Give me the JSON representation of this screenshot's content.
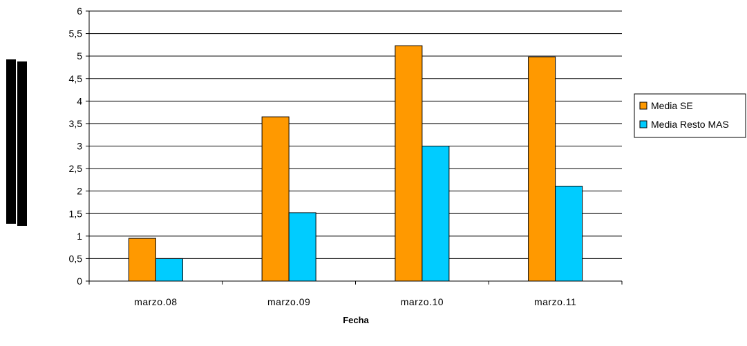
{
  "chart_data": {
    "type": "bar",
    "categories": [
      "marzo.08",
      "marzo.09",
      "marzo.10",
      "marzo.11"
    ],
    "series": [
      {
        "name": "Media SE",
        "values": [
          0.95,
          3.65,
          5.23,
          4.98
        ],
        "color": "#FF9900"
      },
      {
        "name": "Media Resto MAS",
        "values": [
          0.5,
          1.52,
          3.0,
          2.11
        ],
        "color": "#00CCFF"
      }
    ],
    "title": "",
    "xlabel": "Fecha",
    "ylabel": "",
    "ylim": [
      0,
      6
    ],
    "yticks": [
      "0",
      "0,5",
      "1",
      "1,5",
      "2",
      "2,5",
      "3",
      "3,5",
      "4",
      "4,5",
      "5",
      "5,5",
      "6"
    ],
    "grid": true,
    "legend_position": "right"
  }
}
